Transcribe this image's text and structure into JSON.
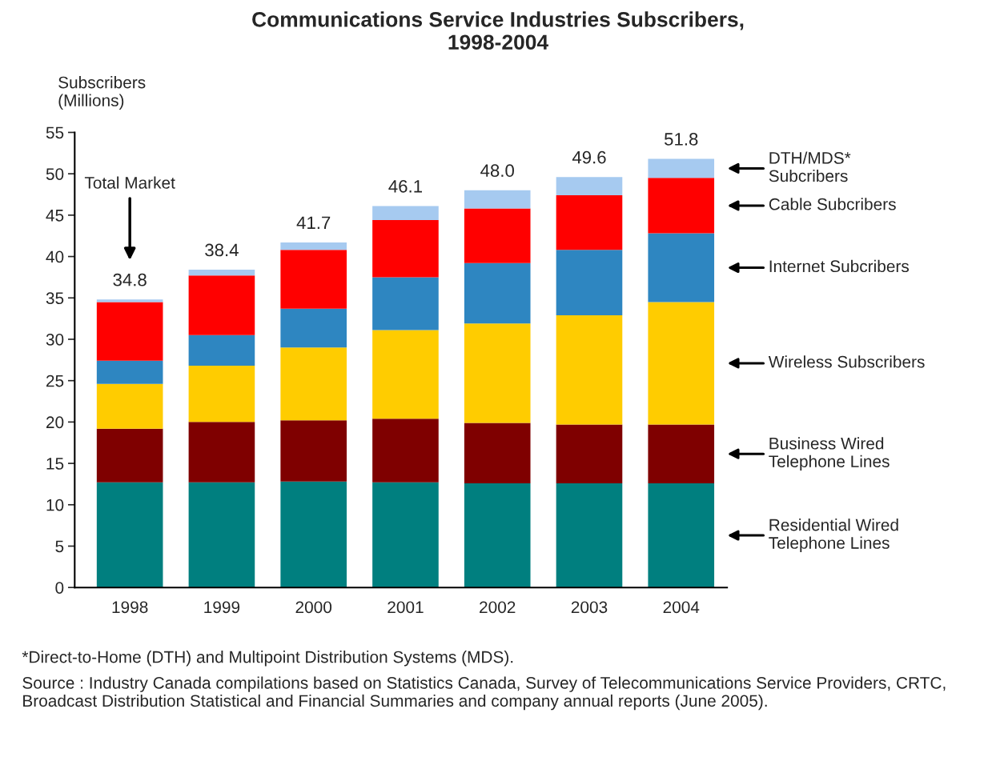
{
  "chart_data": {
    "type": "bar",
    "title": "Communications Service Industries Subscribers,\n1998-2004",
    "ylabel": "Subscribers\n(Millions)",
    "categories": [
      "1998",
      "1999",
      "2000",
      "2001",
      "2002",
      "2003",
      "2004"
    ],
    "stacked": true,
    "series": [
      {
        "name": "Residential Wired\nTelephone Lines",
        "color": "#007f7f",
        "values": [
          12.7,
          12.7,
          12.8,
          12.7,
          12.6,
          12.6,
          12.6
        ]
      },
      {
        "name": "Business Wired\nTelephone Lines",
        "color": "#7f0000",
        "values": [
          6.5,
          7.3,
          7.4,
          7.7,
          7.3,
          7.1,
          7.1
        ]
      },
      {
        "name": "Wireless Subscribers",
        "color": "#ffcc00",
        "values": [
          5.4,
          6.8,
          8.8,
          10.7,
          12.0,
          13.2,
          14.8
        ]
      },
      {
        "name": "Internet Subcribers",
        "color": "#2e86c1",
        "values": [
          2.8,
          3.7,
          4.7,
          6.4,
          7.3,
          7.9,
          8.3
        ]
      },
      {
        "name": "Cable Subcribers",
        "color": "#ff0000",
        "values": [
          7.1,
          7.2,
          7.1,
          6.9,
          6.6,
          6.6,
          6.7
        ]
      },
      {
        "name": "DTH/MDS*\nSubcribers",
        "color": "#a6caf0",
        "values": [
          0.3,
          0.7,
          0.9,
          1.7,
          2.2,
          2.2,
          2.3
        ]
      }
    ],
    "totals": [
      "34.8",
      "38.4",
      "41.7",
      "46.1",
      "48.0",
      "49.6",
      "51.8"
    ],
    "ylim": [
      0,
      55
    ],
    "yticks": [
      0,
      5,
      10,
      15,
      20,
      25,
      30,
      35,
      40,
      45,
      50,
      55
    ],
    "grid": false,
    "legend": false,
    "annotations": [
      "Total Market",
      "*Direct-to-Home (DTH) and Multipoint Distribution Systems (MDS).",
      "Source : Industry Canada compilations based on Statistics Canada, Survey of Telecommunications Service Providers, CRTC, Broadcast Distribution Statistical and Financial Summaries and company annual reports (June 2005)."
    ]
  }
}
